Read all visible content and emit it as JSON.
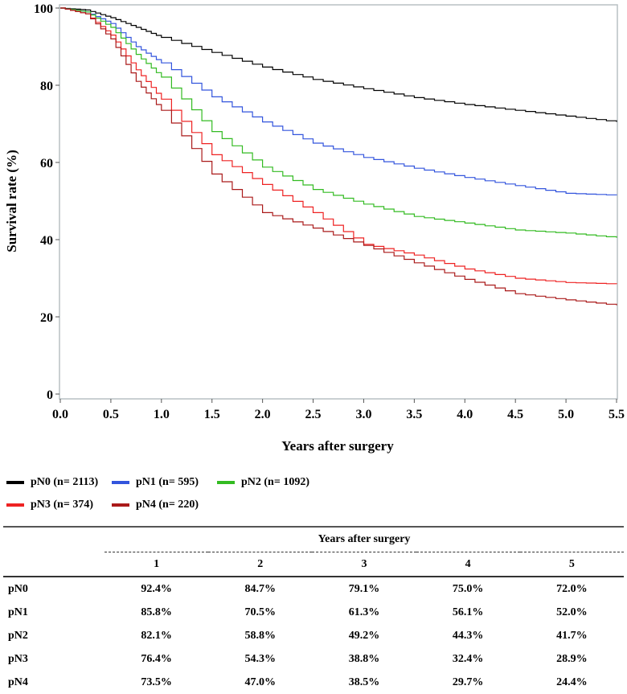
{
  "chart_data": {
    "type": "line",
    "title": "",
    "xlabel": "Years after surgery",
    "ylabel": "Survival rate (%)",
    "xlim": [
      0,
      5.5
    ],
    "ylim": [
      0,
      100
    ],
    "xticks": [
      "0.0",
      "0.5",
      "1.0",
      "1.5",
      "2.0",
      "2.5",
      "3.0",
      "3.5",
      "4.0",
      "4.5",
      "5.0",
      "5.5"
    ],
    "yticks": [
      "0",
      "20",
      "40",
      "60",
      "80",
      "100"
    ],
    "x": [
      0,
      0.25,
      0.5,
      0.75,
      1,
      1.5,
      2,
      2.5,
      3,
      3.5,
      4,
      4.5,
      5,
      5.5
    ],
    "series": [
      {
        "name": "pN0 (n= 2113)",
        "color": "#000000",
        "values": [
          100,
          99.5,
          97.5,
          95,
          92.4,
          88.5,
          84.7,
          81.5,
          79.1,
          76.8,
          75,
          73.5,
          72,
          70.5
        ]
      },
      {
        "name": "pN1 (n= 595)",
        "color": "#3355dd",
        "values": [
          100,
          99,
          96,
          90,
          85.8,
          77,
          70.5,
          65,
          61.3,
          58.5,
          56.1,
          54,
          52,
          51.5
        ]
      },
      {
        "name": "pN2 (n= 1092)",
        "color": "#33bb22",
        "values": [
          100,
          99,
          95,
          88,
          82.1,
          68,
          58.8,
          53,
          49.2,
          46,
          44.3,
          42.5,
          41.7,
          40.5
        ]
      },
      {
        "name": "pN3 (n= 374)",
        "color": "#ee2222",
        "values": [
          100,
          98.5,
          93,
          84,
          76.4,
          62,
          54.3,
          47,
          38.8,
          36,
          32.4,
          30,
          28.9,
          28.5
        ]
      },
      {
        "name": "pN4 (n= 220)",
        "color": "#aa1a1a",
        "values": [
          100,
          98.5,
          92,
          81,
          73.5,
          57,
          47,
          43,
          38.5,
          34,
          29.7,
          26,
          24.4,
          23
        ]
      }
    ],
    "legend_position": "bottom"
  },
  "table": {
    "group_header": "Years after surgery",
    "columns": [
      "1",
      "2",
      "3",
      "4",
      "5"
    ],
    "rows": [
      {
        "label": "pN0",
        "values": [
          "92.4%",
          "84.7%",
          "79.1%",
          "75.0%",
          "72.0%"
        ]
      },
      {
        "label": "pN1",
        "values": [
          "85.8%",
          "70.5%",
          "61.3%",
          "56.1%",
          "52.0%"
        ]
      },
      {
        "label": "pN2",
        "values": [
          "82.1%",
          "58.8%",
          "49.2%",
          "44.3%",
          "41.7%"
        ]
      },
      {
        "label": "pN3",
        "values": [
          "76.4%",
          "54.3%",
          "38.8%",
          "32.4%",
          "28.9%"
        ]
      },
      {
        "label": "pN4",
        "values": [
          "73.5%",
          "47.0%",
          "38.5%",
          "29.7%",
          "24.4%"
        ]
      }
    ]
  }
}
